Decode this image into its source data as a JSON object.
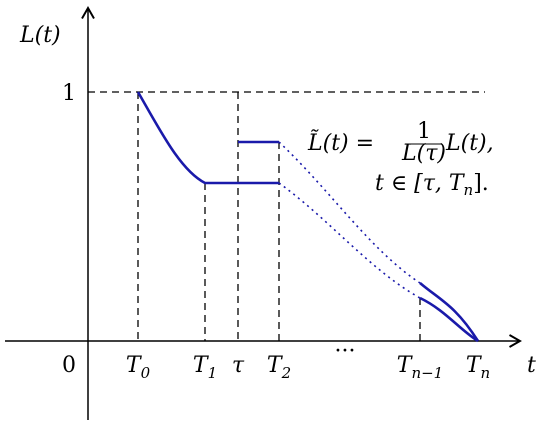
{
  "axes": {
    "y_label": "L(t)",
    "x_label": "t",
    "one": "1",
    "zero": "0"
  },
  "x_ticks": [
    {
      "main": "T",
      "sub": "0"
    },
    {
      "main": "T",
      "sub": "1"
    },
    {
      "main": "τ"
    },
    {
      "main": "T",
      "sub": "2"
    },
    {
      "main": "···"
    },
    {
      "main": "T",
      "sub": "n−1"
    },
    {
      "main": "T",
      "sub": "n"
    }
  ],
  "formula": {
    "lhs": "L̃(t) =",
    "numerator": "1",
    "denominator": "L(τ)",
    "rhs": "L(t),",
    "condition": {
      "main": "t ∈ [τ, T",
      "sub": "n",
      "end": "]."
    }
  }
}
